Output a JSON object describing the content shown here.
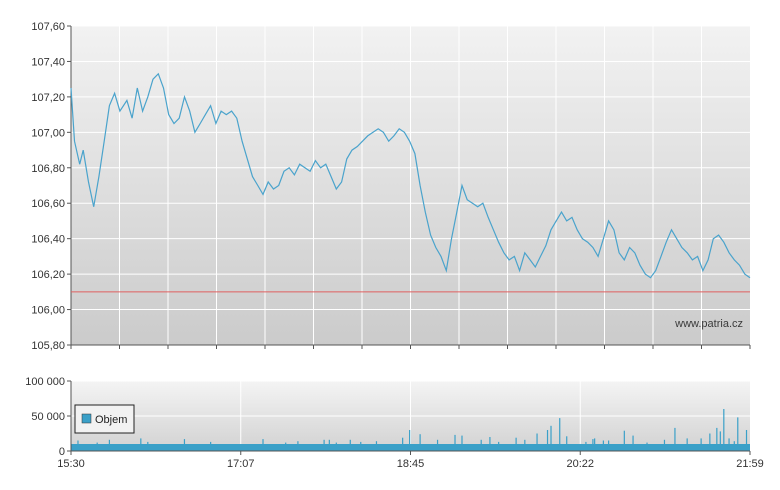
{
  "chart_data": [
    {
      "type": "line",
      "series": [
        {
          "color": "#4aa3cc",
          "points": [
            [
              "15:30",
              107.25
            ],
            [
              "15:32",
              106.95
            ],
            [
              "15:35",
              106.82
            ],
            [
              "15:37",
              106.9
            ],
            [
              "15:40",
              106.72
            ],
            [
              "15:43",
              106.58
            ],
            [
              "15:46",
              106.75
            ],
            [
              "15:49",
              106.95
            ],
            [
              "15:52",
              107.15
            ],
            [
              "15:55",
              107.22
            ],
            [
              "15:58",
              107.12
            ],
            [
              "16:02",
              107.18
            ],
            [
              "16:05",
              107.08
            ],
            [
              "16:08",
              107.25
            ],
            [
              "16:11",
              107.12
            ],
            [
              "16:14",
              107.2
            ],
            [
              "16:17",
              107.3
            ],
            [
              "16:20",
              107.33
            ],
            [
              "16:23",
              107.25
            ],
            [
              "16:26",
              107.1
            ],
            [
              "16:29",
              107.05
            ],
            [
              "16:32",
              107.08
            ],
            [
              "16:35",
              107.2
            ],
            [
              "16:38",
              107.12
            ],
            [
              "16:41",
              107.0
            ],
            [
              "16:44",
              107.05
            ],
            [
              "16:47",
              107.1
            ],
            [
              "16:50",
              107.15
            ],
            [
              "16:53",
              107.05
            ],
            [
              "16:56",
              107.12
            ],
            [
              "16:59",
              107.1
            ],
            [
              "17:02",
              107.12
            ],
            [
              "17:05",
              107.08
            ],
            [
              "17:08",
              106.95
            ],
            [
              "17:11",
              106.85
            ],
            [
              "17:14",
              106.75
            ],
            [
              "17:17",
              106.7
            ],
            [
              "17:20",
              106.65
            ],
            [
              "17:23",
              106.72
            ],
            [
              "17:26",
              106.68
            ],
            [
              "17:29",
              106.7
            ],
            [
              "17:32",
              106.78
            ],
            [
              "17:35",
              106.8
            ],
            [
              "17:38",
              106.76
            ],
            [
              "17:41",
              106.82
            ],
            [
              "17:44",
              106.8
            ],
            [
              "17:47",
              106.78
            ],
            [
              "17:50",
              106.84
            ],
            [
              "17:53",
              106.8
            ],
            [
              "17:56",
              106.82
            ],
            [
              "17:59",
              106.75
            ],
            [
              "18:02",
              106.68
            ],
            [
              "18:05",
              106.72
            ],
            [
              "18:08",
              106.85
            ],
            [
              "18:11",
              106.9
            ],
            [
              "18:14",
              106.92
            ],
            [
              "18:17",
              106.95
            ],
            [
              "18:20",
              106.98
            ],
            [
              "18:23",
              107.0
            ],
            [
              "18:26",
              107.02
            ],
            [
              "18:29",
              107.0
            ],
            [
              "18:32",
              106.95
            ],
            [
              "18:35",
              106.98
            ],
            [
              "18:38",
              107.02
            ],
            [
              "18:41",
              107.0
            ],
            [
              "18:44",
              106.95
            ],
            [
              "18:47",
              106.88
            ],
            [
              "18:50",
              106.7
            ],
            [
              "18:53",
              106.55
            ],
            [
              "18:56",
              106.42
            ],
            [
              "18:59",
              106.35
            ],
            [
              "19:02",
              106.3
            ],
            [
              "19:05",
              106.22
            ],
            [
              "19:08",
              106.4
            ],
            [
              "19:11",
              106.55
            ],
            [
              "19:14",
              106.7
            ],
            [
              "19:17",
              106.62
            ],
            [
              "19:20",
              106.6
            ],
            [
              "19:23",
              106.58
            ],
            [
              "19:26",
              106.6
            ],
            [
              "19:29",
              106.52
            ],
            [
              "19:32",
              106.45
            ],
            [
              "19:35",
              106.38
            ],
            [
              "19:38",
              106.32
            ],
            [
              "19:41",
              106.28
            ],
            [
              "19:44",
              106.3
            ],
            [
              "19:47",
              106.22
            ],
            [
              "19:50",
              106.32
            ],
            [
              "19:53",
              106.28
            ],
            [
              "19:56",
              106.24
            ],
            [
              "19:59",
              106.3
            ],
            [
              "20:02",
              106.36
            ],
            [
              "20:05",
              106.45
            ],
            [
              "20:08",
              106.5
            ],
            [
              "20:11",
              106.55
            ],
            [
              "20:14",
              106.5
            ],
            [
              "20:17",
              106.52
            ],
            [
              "20:20",
              106.45
            ],
            [
              "20:23",
              106.4
            ],
            [
              "20:26",
              106.38
            ],
            [
              "20:29",
              106.35
            ],
            [
              "20:32",
              106.3
            ],
            [
              "20:35",
              106.4
            ],
            [
              "20:38",
              106.5
            ],
            [
              "20:41",
              106.45
            ],
            [
              "20:44",
              106.32
            ],
            [
              "20:47",
              106.28
            ],
            [
              "20:50",
              106.35
            ],
            [
              "20:53",
              106.32
            ],
            [
              "20:56",
              106.25
            ],
            [
              "20:59",
              106.2
            ],
            [
              "21:02",
              106.18
            ],
            [
              "21:05",
              106.22
            ],
            [
              "21:08",
              106.3
            ],
            [
              "21:11",
              106.38
            ],
            [
              "21:14",
              106.45
            ],
            [
              "21:17",
              106.4
            ],
            [
              "21:20",
              106.35
            ],
            [
              "21:23",
              106.32
            ],
            [
              "21:26",
              106.28
            ],
            [
              "21:29",
              106.3
            ],
            [
              "21:32",
              106.22
            ],
            [
              "21:35",
              106.28
            ],
            [
              "21:38",
              106.4
            ],
            [
              "21:41",
              106.42
            ],
            [
              "21:44",
              106.38
            ],
            [
              "21:47",
              106.32
            ],
            [
              "21:50",
              106.28
            ],
            [
              "21:53",
              106.25
            ],
            [
              "21:56",
              106.2
            ],
            [
              "21:59",
              106.18
            ]
          ]
        }
      ],
      "reference_line": {
        "value": 106.1,
        "color": "#e06060"
      },
      "ylim": [
        105.8,
        107.6
      ],
      "y_ticks": [
        "107,60",
        "107,40",
        "107,20",
        "107,00",
        "106,80",
        "106,60",
        "106,40",
        "106,20",
        "106,00",
        "105,80"
      ],
      "watermark": "www.patria.cz",
      "grid": true
    },
    {
      "type": "bar",
      "legend": "Objem",
      "ylim": [
        0,
        100000
      ],
      "y_ticks": [
        "100 000",
        "50 000",
        "0"
      ],
      "x_ticks": [
        "15:30",
        "17:07",
        "18:45",
        "20:22",
        "21:59"
      ],
      "baseline": 10000,
      "bar_color": "#3aa0c8",
      "spikes": [
        [
          "15:31",
          8000
        ],
        [
          "15:34",
          15000
        ],
        [
          "15:38",
          9000
        ],
        [
          "15:45",
          12000
        ],
        [
          "15:52",
          16000
        ],
        [
          "16:00",
          10000
        ],
        [
          "16:10",
          18000
        ],
        [
          "16:14",
          13000
        ],
        [
          "16:22",
          10000
        ],
        [
          "16:35",
          17000
        ],
        [
          "16:50",
          13000
        ],
        [
          "17:20",
          17000
        ],
        [
          "17:33",
          12000
        ],
        [
          "17:40",
          14000
        ],
        [
          "17:55",
          16000
        ],
        [
          "17:58",
          16000
        ],
        [
          "18:02",
          12000
        ],
        [
          "18:10",
          16000
        ],
        [
          "18:16",
          13000
        ],
        [
          "18:25",
          14000
        ],
        [
          "18:40",
          19000
        ],
        [
          "18:44",
          30000
        ],
        [
          "18:50",
          24000
        ],
        [
          "19:00",
          16000
        ],
        [
          "19:10",
          23000
        ],
        [
          "19:14",
          22000
        ],
        [
          "19:25",
          16000
        ],
        [
          "19:30",
          20000
        ],
        [
          "19:35",
          13000
        ],
        [
          "19:45",
          19000
        ],
        [
          "19:50",
          16000
        ],
        [
          "19:57",
          25000
        ],
        [
          "20:03",
          30000
        ],
        [
          "20:05",
          36000
        ],
        [
          "20:10",
          47000
        ],
        [
          "20:14",
          21000
        ],
        [
          "20:25",
          13000
        ],
        [
          "20:29",
          17000
        ],
        [
          "20:30",
          18000
        ],
        [
          "20:35",
          15000
        ],
        [
          "20:38",
          15000
        ],
        [
          "20:47",
          29000
        ],
        [
          "20:52",
          22000
        ],
        [
          "21:00",
          12000
        ],
        [
          "21:10",
          16000
        ],
        [
          "21:16",
          33000
        ],
        [
          "21:23",
          18000
        ],
        [
          "21:31",
          18000
        ],
        [
          "21:36",
          25000
        ],
        [
          "21:40",
          33000
        ],
        [
          "21:42",
          28000
        ],
        [
          "21:44",
          60000
        ],
        [
          "21:47",
          18000
        ],
        [
          "21:50",
          14000
        ],
        [
          "21:52",
          48000
        ],
        [
          "21:57",
          30000
        ]
      ]
    }
  ]
}
